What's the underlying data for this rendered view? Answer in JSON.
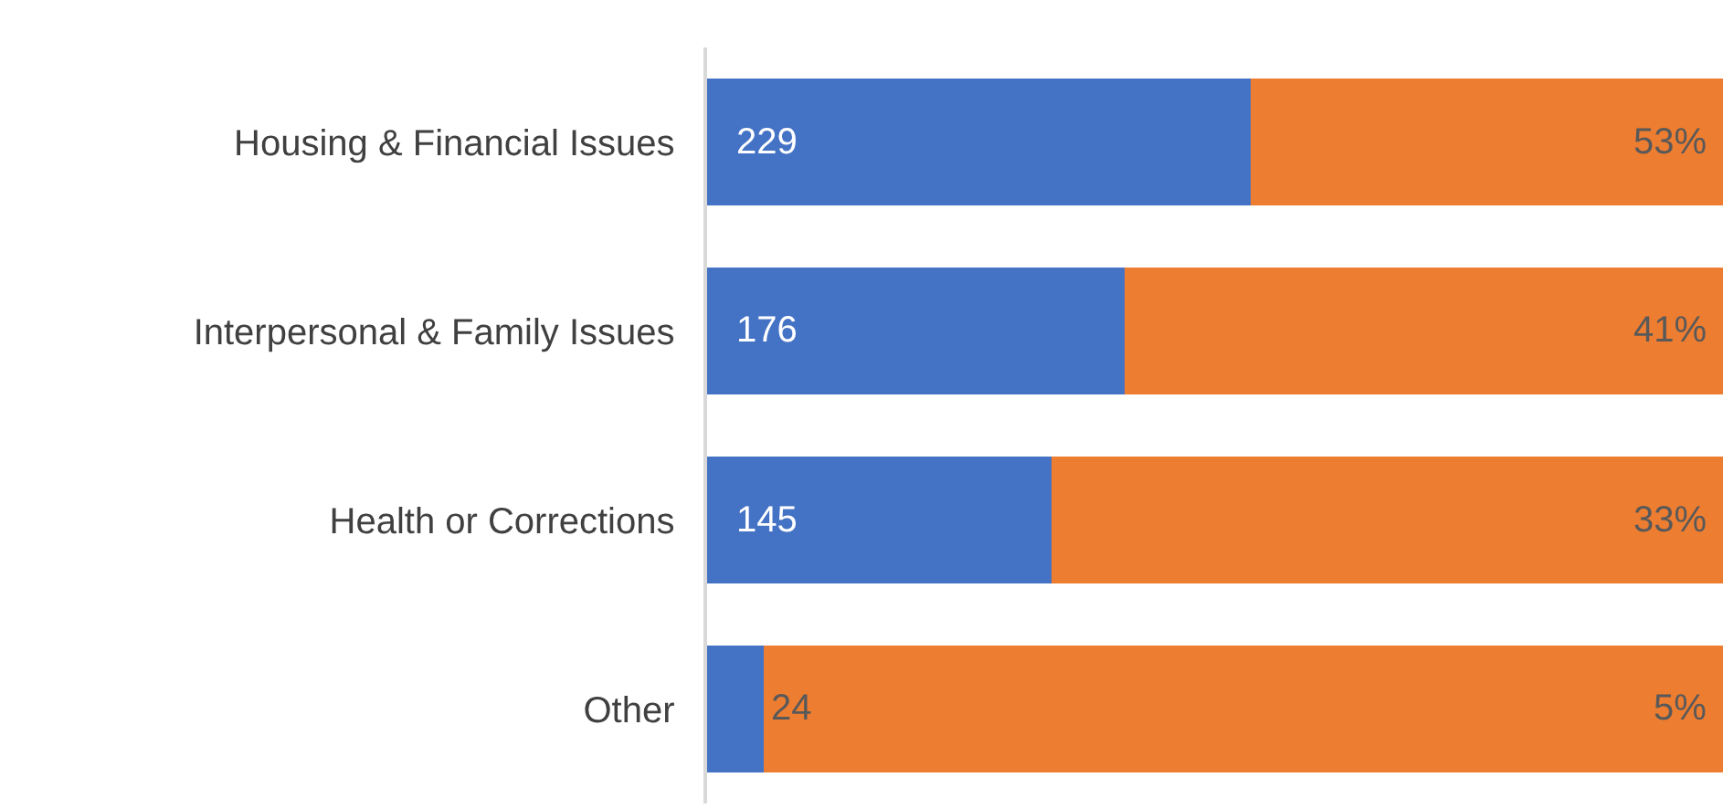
{
  "chart_data": {
    "type": "bar",
    "orientation": "horizontal",
    "stacked": true,
    "categories": [
      "Housing & Financial Issues",
      "Interpersonal & Family Issues",
      "Health or Corrections",
      "Other"
    ],
    "series": [
      {
        "color": "#4472c4",
        "values": [
          229,
          176,
          145,
          24
        ],
        "value_labels": [
          "229",
          "176",
          "145",
          "24"
        ]
      },
      {
        "color": "#ed7d31",
        "values": [
          199,
          252,
          283,
          404
        ]
      }
    ],
    "annotations": [
      "53%",
      "41%",
      "33%",
      "5%"
    ],
    "xlim": [
      0,
      428
    ],
    "tick_labels": "y"
  }
}
